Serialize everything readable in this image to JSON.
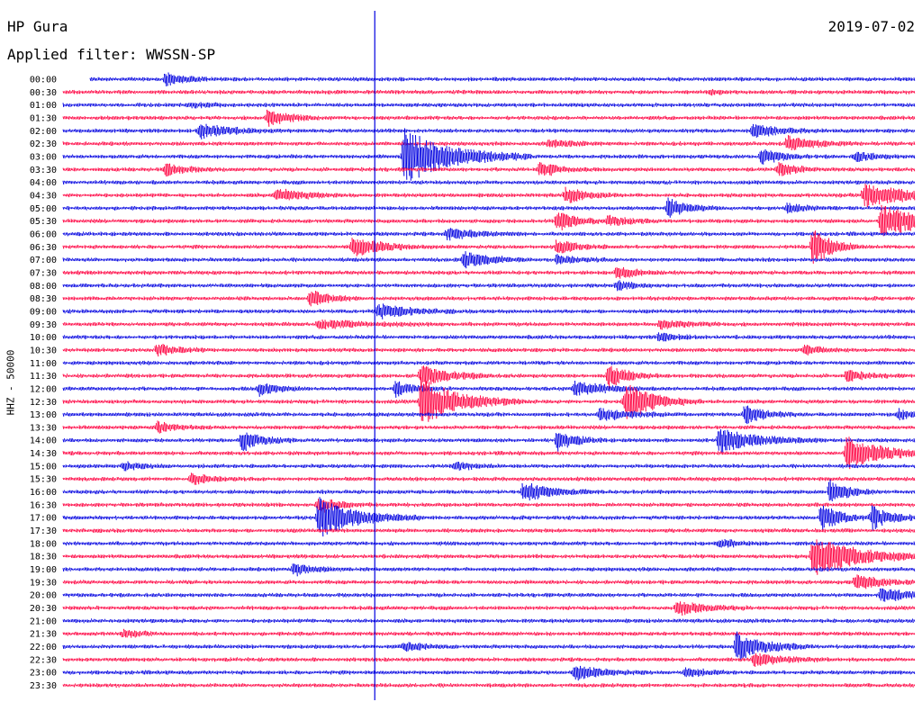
{
  "header": {
    "station": "HP Gura",
    "date": "2019-07-02",
    "filter": "Applied filter: WWSSN-SP"
  },
  "chart_data": {
    "type": "line",
    "title": "HP Gura",
    "subtitle": "Applied filter: WWSSN-SP",
    "ylabel": "HHZ - 50000",
    "xlabel": "",
    "colors": {
      "odd_rows": "#0000e0",
      "even_rows": "#ff0040",
      "marker": "#0000e0"
    },
    "grid": false,
    "categories": [
      "00:00",
      "00:30",
      "01:00",
      "01:30",
      "02:00",
      "02:30",
      "03:00",
      "03:30",
      "04:00",
      "04:30",
      "05:00",
      "05:30",
      "06:00",
      "06:30",
      "07:00",
      "07:30",
      "08:00",
      "08:30",
      "09:00",
      "09:30",
      "10:00",
      "10:30",
      "11:00",
      "11:30",
      "12:00",
      "12:30",
      "13:00",
      "13:30",
      "14:00",
      "14:30",
      "15:00",
      "15:30",
      "16:00",
      "16:30",
      "17:00",
      "17:30",
      "18:00",
      "18:30",
      "19:00",
      "19:30",
      "20:00",
      "20:30",
      "21:00",
      "21:30",
      "22:00",
      "22:30",
      "23:00",
      "23:30"
    ],
    "events": [
      {
        "row": 0,
        "t": 0.12,
        "amp": 0.8,
        "dur": 0.02
      },
      {
        "row": 1,
        "t": 0.76,
        "amp": 0.3,
        "dur": 0.01
      },
      {
        "row": 2,
        "t": 0.15,
        "amp": 0.3,
        "dur": 0.02
      },
      {
        "row": 3,
        "t": 0.24,
        "amp": 1.2,
        "dur": 0.02
      },
      {
        "row": 4,
        "t": 0.16,
        "amp": 1.0,
        "dur": 0.03
      },
      {
        "row": 4,
        "t": 0.81,
        "amp": 0.8,
        "dur": 0.03
      },
      {
        "row": 5,
        "t": 0.57,
        "amp": 0.4,
        "dur": 0.03
      },
      {
        "row": 5,
        "t": 0.85,
        "amp": 0.9,
        "dur": 0.03
      },
      {
        "row": 6,
        "t": 0.4,
        "amp": 3.5,
        "dur": 0.05
      },
      {
        "row": 6,
        "t": 0.82,
        "amp": 1.0,
        "dur": 0.02
      },
      {
        "row": 6,
        "t": 0.93,
        "amp": 0.6,
        "dur": 0.02
      },
      {
        "row": 7,
        "t": 0.12,
        "amp": 0.8,
        "dur": 0.02
      },
      {
        "row": 7,
        "t": 0.56,
        "amp": 1.0,
        "dur": 0.02
      },
      {
        "row": 7,
        "t": 0.84,
        "amp": 0.8,
        "dur": 0.02
      },
      {
        "row": 9,
        "t": 0.25,
        "amp": 0.8,
        "dur": 0.03
      },
      {
        "row": 9,
        "t": 0.59,
        "amp": 1.0,
        "dur": 0.02
      },
      {
        "row": 9,
        "t": 0.94,
        "amp": 1.5,
        "dur": 0.05
      },
      {
        "row": 10,
        "t": 0.71,
        "amp": 1.2,
        "dur": 0.02
      },
      {
        "row": 10,
        "t": 0.85,
        "amp": 0.6,
        "dur": 0.02
      },
      {
        "row": 11,
        "t": 0.58,
        "amp": 1.3,
        "dur": 0.02
      },
      {
        "row": 11,
        "t": 0.64,
        "amp": 0.7,
        "dur": 0.02
      },
      {
        "row": 11,
        "t": 0.96,
        "amp": 2.0,
        "dur": 0.05
      },
      {
        "row": 12,
        "t": 0.45,
        "amp": 0.7,
        "dur": 0.03
      },
      {
        "row": 13,
        "t": 0.34,
        "amp": 1.3,
        "dur": 0.03
      },
      {
        "row": 13,
        "t": 0.58,
        "amp": 0.9,
        "dur": 0.02
      },
      {
        "row": 13,
        "t": 0.88,
        "amp": 2.5,
        "dur": 0.02
      },
      {
        "row": 14,
        "t": 0.47,
        "amp": 1.0,
        "dur": 0.03
      },
      {
        "row": 14,
        "t": 0.58,
        "amp": 0.6,
        "dur": 0.02
      },
      {
        "row": 15,
        "t": 0.65,
        "amp": 0.8,
        "dur": 0.02
      },
      {
        "row": 16,
        "t": 0.65,
        "amp": 0.5,
        "dur": 0.02
      },
      {
        "row": 17,
        "t": 0.29,
        "amp": 1.0,
        "dur": 0.02
      },
      {
        "row": 18,
        "t": 0.37,
        "amp": 1.0,
        "dur": 0.03
      },
      {
        "row": 19,
        "t": 0.3,
        "amp": 0.5,
        "dur": 0.05
      },
      {
        "row": 19,
        "t": 0.7,
        "amp": 0.5,
        "dur": 0.03
      },
      {
        "row": 20,
        "t": 0.7,
        "amp": 0.5,
        "dur": 0.02
      },
      {
        "row": 21,
        "t": 0.11,
        "amp": 0.8,
        "dur": 0.02
      },
      {
        "row": 21,
        "t": 0.87,
        "amp": 0.6,
        "dur": 0.02
      },
      {
        "row": 23,
        "t": 0.42,
        "amp": 1.3,
        "dur": 0.03
      },
      {
        "row": 23,
        "t": 0.64,
        "amp": 1.5,
        "dur": 0.02
      },
      {
        "row": 23,
        "t": 0.92,
        "amp": 0.7,
        "dur": 0.02
      },
      {
        "row": 24,
        "t": 0.23,
        "amp": 0.8,
        "dur": 0.02
      },
      {
        "row": 24,
        "t": 0.39,
        "amp": 0.9,
        "dur": 0.02
      },
      {
        "row": 24,
        "t": 0.6,
        "amp": 1.0,
        "dur": 0.03
      },
      {
        "row": 25,
        "t": 0.42,
        "amp": 3.0,
        "dur": 0.04
      },
      {
        "row": 25,
        "t": 0.66,
        "amp": 2.5,
        "dur": 0.03
      },
      {
        "row": 26,
        "t": 0.63,
        "amp": 0.8,
        "dur": 0.03
      },
      {
        "row": 26,
        "t": 0.8,
        "amp": 1.2,
        "dur": 0.02
      },
      {
        "row": 26,
        "t": 0.98,
        "amp": 0.6,
        "dur": 0.02
      },
      {
        "row": 27,
        "t": 0.11,
        "amp": 0.7,
        "dur": 0.02
      },
      {
        "row": 28,
        "t": 0.21,
        "amp": 1.4,
        "dur": 0.02
      },
      {
        "row": 28,
        "t": 0.58,
        "amp": 1.2,
        "dur": 0.02
      },
      {
        "row": 28,
        "t": 0.77,
        "amp": 1.5,
        "dur": 0.04
      },
      {
        "row": 29,
        "t": 0.92,
        "amp": 2.0,
        "dur": 0.04
      },
      {
        "row": 30,
        "t": 0.07,
        "amp": 0.5,
        "dur": 0.02
      },
      {
        "row": 30,
        "t": 0.46,
        "amp": 0.5,
        "dur": 0.02
      },
      {
        "row": 31,
        "t": 0.15,
        "amp": 0.8,
        "dur": 0.02
      },
      {
        "row": 32,
        "t": 0.54,
        "amp": 1.2,
        "dur": 0.03
      },
      {
        "row": 32,
        "t": 0.9,
        "amp": 1.5,
        "dur": 0.02
      },
      {
        "row": 33,
        "t": 0.3,
        "amp": 1.0,
        "dur": 0.02
      },
      {
        "row": 34,
        "t": 0.3,
        "amp": 2.5,
        "dur": 0.04
      },
      {
        "row": 34,
        "t": 0.89,
        "amp": 1.8,
        "dur": 0.02
      },
      {
        "row": 34,
        "t": 0.95,
        "amp": 1.5,
        "dur": 0.02
      },
      {
        "row": 36,
        "t": 0.77,
        "amp": 0.6,
        "dur": 0.02
      },
      {
        "row": 37,
        "t": 0.88,
        "amp": 2.5,
        "dur": 0.05
      },
      {
        "row": 38,
        "t": 0.27,
        "amp": 0.8,
        "dur": 0.02
      },
      {
        "row": 39,
        "t": 0.93,
        "amp": 0.9,
        "dur": 0.03
      },
      {
        "row": 40,
        "t": 0.96,
        "amp": 0.9,
        "dur": 0.03
      },
      {
        "row": 41,
        "t": 0.72,
        "amp": 0.9,
        "dur": 0.03
      },
      {
        "row": 43,
        "t": 0.07,
        "amp": 0.4,
        "dur": 0.02
      },
      {
        "row": 44,
        "t": 0.79,
        "amp": 1.8,
        "dur": 0.03
      },
      {
        "row": 44,
        "t": 0.4,
        "amp": 0.6,
        "dur": 0.02
      },
      {
        "row": 45,
        "t": 0.81,
        "amp": 0.8,
        "dur": 0.03
      },
      {
        "row": 46,
        "t": 0.6,
        "amp": 0.9,
        "dur": 0.03
      },
      {
        "row": 46,
        "t": 0.73,
        "amp": 0.6,
        "dur": 0.02
      }
    ],
    "marker_time_fraction": 0.366
  }
}
